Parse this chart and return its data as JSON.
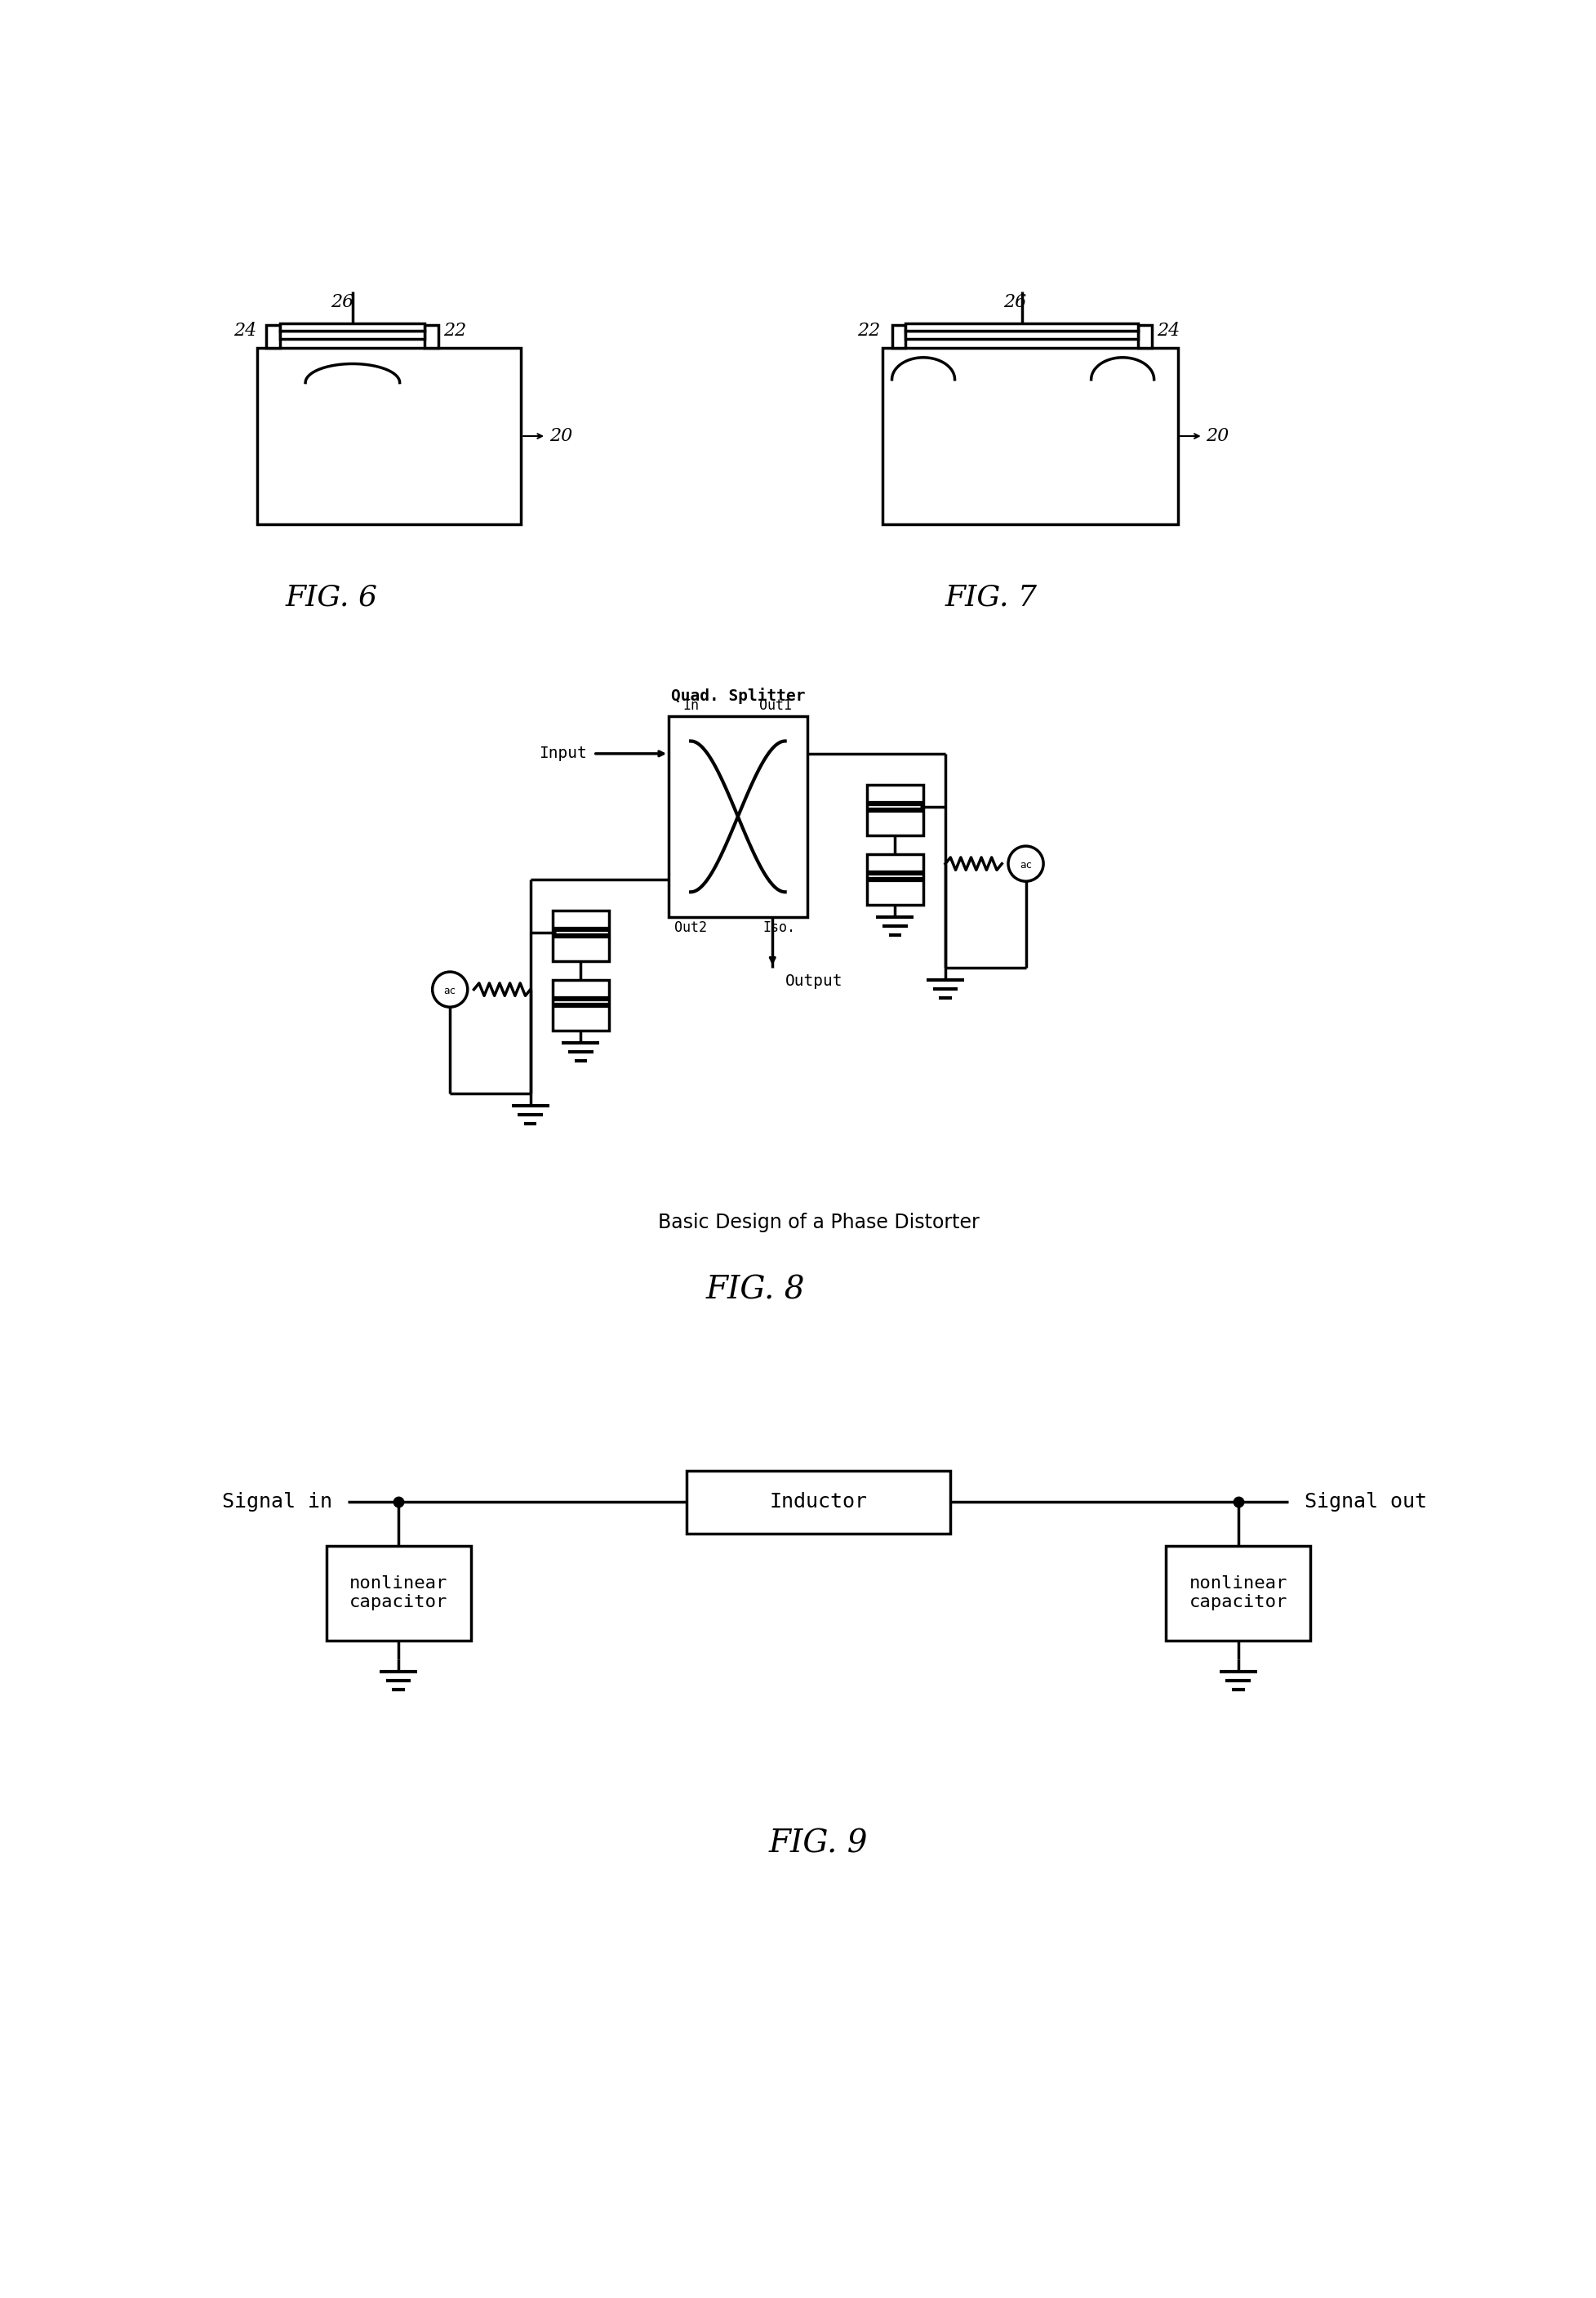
{
  "bg_color": "#ffffff",
  "fig6_label": "FIG. 6",
  "fig7_label": "FIG. 7",
  "fig8_label": "FIG. 8",
  "fig9_label": "FIG. 9",
  "fig8_caption": "Basic Design of a Phase Distorter",
  "quad_splitter_label": "Quad. Splitter",
  "in_label": "In",
  "out1_label": "Out1",
  "out2_label": "Out2",
  "iso_label": "Iso.",
  "input_label": "Input",
  "output_label": "Output",
  "signal_in_label": "Signal in",
  "signal_out_label": "Signal out",
  "inductor_label": "Inductor",
  "nonlinear_cap_label": "nonlinear\ncapacitor",
  "line_color": "#000000",
  "line_width": 2.5,
  "font_size_labels": 14,
  "font_size_fig": 24
}
